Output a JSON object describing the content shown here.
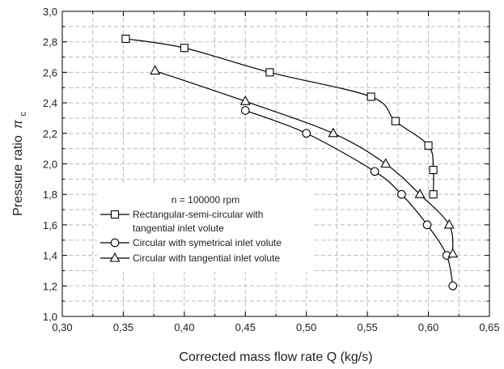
{
  "chart_data": {
    "type": "line",
    "xlabel": "Corrected mass flow rate Q (kg/s)",
    "ylabel": "Pressure ratio",
    "ylabel_symbol": "π",
    "ylabel_subscript": "c",
    "xlim": [
      0.3,
      0.65
    ],
    "ylim": [
      1.0,
      3.0
    ],
    "xticks": [
      "0,30",
      "0,35",
      "0,40",
      "0,45",
      "0,50",
      "0,55",
      "0,60",
      "0,65"
    ],
    "yticks": [
      "1,0",
      "1,2",
      "1,4",
      "1,6",
      "1,8",
      "2,0",
      "2,2",
      "2,4",
      "2,6",
      "2,8",
      "3,0"
    ],
    "grid": true,
    "legend_title": "n = 100000 rpm",
    "legend_position": "lower-left",
    "series": [
      {
        "name": "Rectangular-semi-circular with tangential inlet volute",
        "name_lines": [
          "Rectangular-semi-circular with",
          "tangential inlet volute"
        ],
        "marker": "square",
        "x": [
          0.352,
          0.4,
          0.47,
          0.553,
          0.573,
          0.6,
          0.604,
          0.604
        ],
        "y": [
          2.82,
          2.76,
          2.6,
          2.44,
          2.28,
          2.12,
          1.96,
          1.8
        ]
      },
      {
        "name": "Circular with symetrical inlet volute",
        "name_lines": [
          "Circular with symetrical inlet volute"
        ],
        "marker": "circle",
        "x": [
          0.45,
          0.5,
          0.556,
          0.578,
          0.599,
          0.615,
          0.62
        ],
        "y": [
          2.35,
          2.2,
          1.95,
          1.8,
          1.6,
          1.4,
          1.2
        ]
      },
      {
        "name": "Circular with tangential inlet volute",
        "name_lines": [
          "Circular with tangential inlet volute"
        ],
        "marker": "triangle",
        "x": [
          0.376,
          0.45,
          0.522,
          0.565,
          0.593,
          0.617,
          0.62
        ],
        "y": [
          2.61,
          2.41,
          2.2,
          2.0,
          1.8,
          1.6,
          1.41
        ]
      }
    ]
  }
}
